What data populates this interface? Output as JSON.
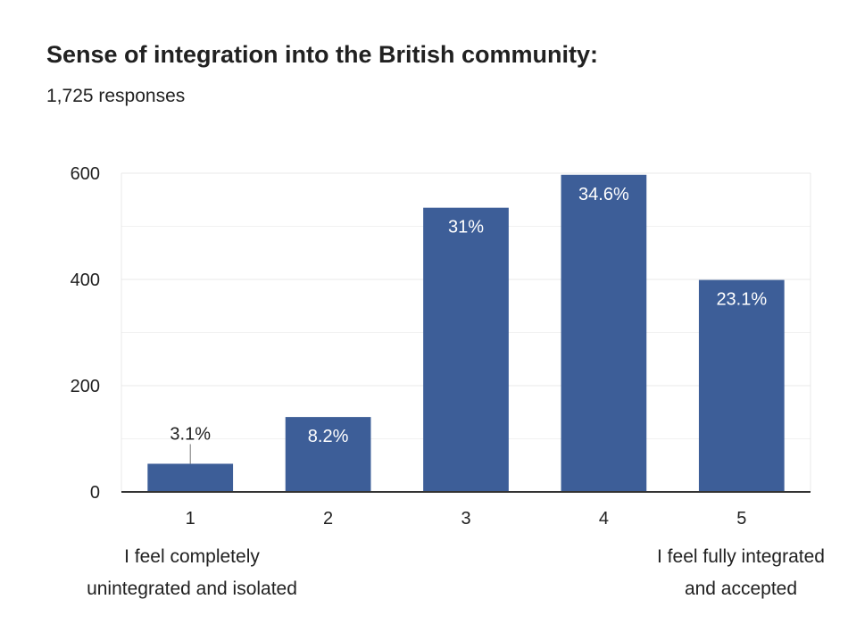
{
  "header": {
    "title": "Sense of integration into the British community:",
    "subtitle": "1,725 responses"
  },
  "scale_labels": {
    "low": [
      "I feel completely",
      "unintegrated and isolated"
    ],
    "high": [
      "I feel fully integrated",
      "and accepted"
    ]
  },
  "colors": {
    "bar": "#3d5e98",
    "bar_label_inside": "#ffffff",
    "bar_label_outside": "#212121",
    "grid": "#e8e8e8",
    "axis": "#333333",
    "text": "#212121"
  },
  "chart_data": {
    "type": "bar",
    "title": "Sense of integration into the British community:",
    "subtitle": "1,725 responses",
    "categories": [
      "1",
      "2",
      "3",
      "4",
      "5"
    ],
    "values": [
      53,
      141,
      535,
      597,
      399
    ],
    "data_labels": [
      "3.1%",
      "8.2%",
      "31%",
      "34.6%",
      "23.1%"
    ],
    "ylim": [
      0,
      600
    ],
    "yticks": [
      0,
      200,
      400,
      600
    ],
    "xlabel": "",
    "ylabel": "",
    "grid": true,
    "legend": "none"
  }
}
